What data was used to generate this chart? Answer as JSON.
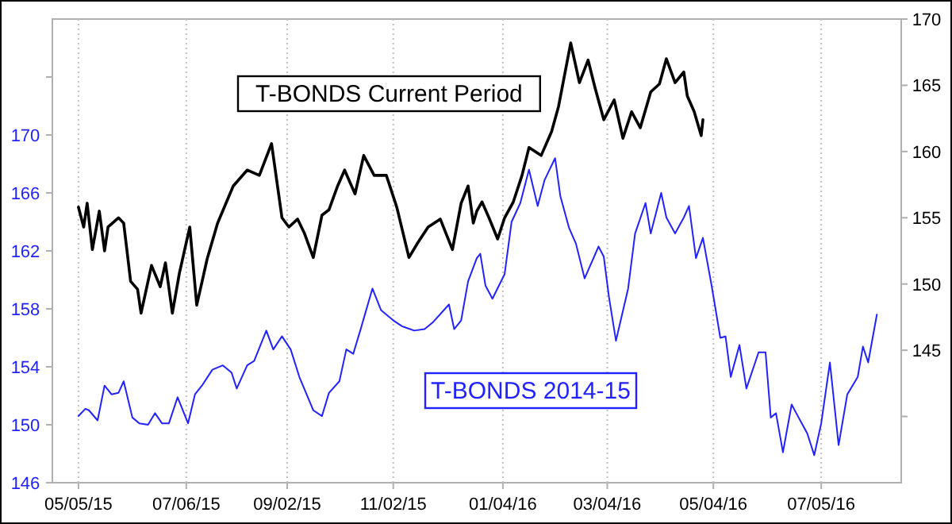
{
  "chart_data": {
    "type": "line",
    "xlim": [
      "2015-04-20",
      "2016-08-20"
    ],
    "xticks": [
      {
        "value": "2015-05-05",
        "label": "05/05/15"
      },
      {
        "value": "2015-07-06",
        "label": "07/06/15"
      },
      {
        "value": "2015-09-02",
        "label": "09/02/15"
      },
      {
        "value": "2015-11-02",
        "label": "11/02/15"
      },
      {
        "value": "2016-01-04",
        "label": "01/04/16"
      },
      {
        "value": "2016-03-04",
        "label": "03/04/16"
      },
      {
        "value": "2016-05-04",
        "label": "05/04/16"
      },
      {
        "value": "2016-07-05",
        "label": "07/05/16"
      }
    ],
    "ylim": [
      146,
      178
    ],
    "yticks": [
      146,
      150,
      154,
      158,
      162,
      166,
      170,
      {
        "value": 174,
        "label": null
      }
    ],
    "y2lim": [
      135,
      170
    ],
    "y2ticks": [
      {
        "value": 140,
        "label": null
      },
      145,
      150,
      155,
      160,
      165,
      170
    ],
    "grid": "x",
    "series": [
      {
        "name": "T-BONDS Current Period",
        "color": "#000000",
        "axis": "y2",
        "x": [
          "2015-05-05",
          "2015-05-08",
          "2015-05-10",
          "2015-05-13",
          "2015-05-17",
          "2015-05-20",
          "2015-05-22",
          "2015-05-28",
          "2015-05-31",
          "2015-06-04",
          "2015-06-08",
          "2015-06-10",
          "2015-06-16",
          "2015-06-21",
          "2015-06-24",
          "2015-06-28",
          "2015-07-02",
          "2015-07-08",
          "2015-07-12",
          "2015-07-18",
          "2015-07-24",
          "2015-08-02",
          "2015-08-10",
          "2015-08-17",
          "2015-08-24",
          "2015-08-30",
          "2015-09-03",
          "2015-09-08",
          "2015-09-12",
          "2015-09-17",
          "2015-09-22",
          "2015-09-26",
          "2015-10-01",
          "2015-10-05",
          "2015-10-11",
          "2015-10-16",
          "2015-10-22",
          "2015-10-29",
          "2015-11-04",
          "2015-11-11",
          "2015-11-16",
          "2015-11-22",
          "2015-11-29",
          "2015-12-06",
          "2015-12-11",
          "2015-12-15",
          "2015-12-18",
          "2015-12-20",
          "2015-12-23",
          "2015-12-27",
          "2016-01-01",
          "2016-01-05",
          "2016-01-10",
          "2016-01-15",
          "2016-01-19",
          "2016-01-26",
          "2016-02-01",
          "2016-02-05",
          "2016-02-12",
          "2016-02-17",
          "2016-02-22",
          "2016-02-26",
          "2016-03-02",
          "2016-03-08",
          "2016-03-13",
          "2016-03-18",
          "2016-03-23",
          "2016-03-29",
          "2016-04-03",
          "2016-04-07",
          "2016-04-12",
          "2016-04-17",
          "2016-04-19",
          "2016-04-23",
          "2016-04-27",
          "2016-04-28"
        ],
        "values": [
          155.8,
          154.3,
          156.1,
          152.6,
          155.5,
          152.5,
          154.3,
          155,
          154.6,
          150.2,
          149.6,
          147.8,
          151.4,
          149.8,
          151.6,
          147.8,
          150.8,
          154.3,
          148.4,
          151.9,
          154.6,
          157.4,
          158.6,
          158.2,
          160.6,
          155,
          154.3,
          154.9,
          153.8,
          152,
          155.2,
          155.6,
          157.4,
          158.6,
          156.8,
          159.7,
          158.2,
          158.2,
          155.8,
          152,
          153.1,
          154.3,
          154.9,
          152.6,
          156.1,
          157.4,
          154.6,
          155.5,
          156.2,
          155,
          153.4,
          155,
          156.2,
          158.2,
          160.3,
          159.7,
          161.5,
          163.4,
          168.2,
          165.2,
          166.9,
          164.8,
          162.4,
          163.9,
          161,
          163,
          161.8,
          164.5,
          165.1,
          167,
          165.2,
          166,
          164.2,
          163,
          161.2,
          162.4
        ]
      },
      {
        "name": "T-BONDS 2014-15",
        "color": "#2222ff",
        "x": [
          "2015-05-05",
          "2015-05-09",
          "2015-05-11",
          "2015-05-16",
          "2015-05-20",
          "2015-05-24",
          "2015-05-28",
          "2015-05-31",
          "2015-06-05",
          "2015-06-09",
          "2015-06-14",
          "2015-06-18",
          "2015-06-22",
          "2015-06-26",
          "2015-07-01",
          "2015-07-07",
          "2015-07-11",
          "2015-07-15",
          "2015-07-21",
          "2015-07-27",
          "2015-08-01",
          "2015-08-04",
          "2015-08-10",
          "2015-08-14",
          "2015-08-21",
          "2015-08-25",
          "2015-08-30",
          "2015-09-04",
          "2015-09-09",
          "2015-09-17",
          "2015-09-22",
          "2015-09-26",
          "2015-10-02",
          "2015-10-06",
          "2015-10-10",
          "2015-10-14",
          "2015-10-21",
          "2015-10-26",
          "2015-11-02",
          "2015-11-07",
          "2015-11-14",
          "2015-11-20",
          "2015-11-25",
          "2015-12-04",
          "2015-12-07",
          "2015-12-11",
          "2015-12-15",
          "2015-12-20",
          "2015-12-22",
          "2015-12-25",
          "2015-12-29",
          "2016-01-05",
          "2016-01-09",
          "2016-01-14",
          "2016-01-19",
          "2016-01-24",
          "2016-01-28",
          "2016-02-03",
          "2016-02-06",
          "2016-02-11",
          "2016-02-15",
          "2016-02-20",
          "2016-02-28",
          "2016-03-02",
          "2016-03-05",
          "2016-03-09",
          "2016-03-16",
          "2016-03-20",
          "2016-03-26",
          "2016-03-29",
          "2016-04-04",
          "2016-04-07",
          "2016-04-12",
          "2016-04-17",
          "2016-04-20",
          "2016-04-24",
          "2016-04-28",
          "2016-05-03",
          "2016-05-08",
          "2016-05-11",
          "2016-05-14",
          "2016-05-19",
          "2016-05-23",
          "2016-05-30",
          "2016-06-03",
          "2016-06-06",
          "2016-06-09",
          "2016-06-13",
          "2016-06-18",
          "2016-06-22",
          "2016-06-27",
          "2016-07-01",
          "2016-07-05",
          "2016-07-10",
          "2016-07-15",
          "2016-07-20",
          "2016-07-26",
          "2016-07-29",
          "2016-08-01",
          "2016-08-06"
        ],
        "values": [
          150.6,
          151.1,
          151,
          150.3,
          152.7,
          152.1,
          152.2,
          153,
          150.5,
          150.1,
          150,
          150.8,
          150.1,
          150.1,
          151.9,
          150.1,
          152.1,
          152.7,
          153.8,
          154.1,
          153.6,
          152.5,
          154.1,
          154.4,
          156.5,
          155.2,
          156.1,
          155.2,
          153.3,
          151,
          150.6,
          152.2,
          153,
          155.2,
          154.9,
          156.5,
          159.4,
          157.9,
          157.2,
          156.8,
          156.5,
          156.6,
          157.1,
          158.3,
          156.6,
          157.2,
          159.9,
          161.5,
          161.8,
          159.6,
          158.7,
          160.4,
          164,
          165.3,
          167.6,
          165.1,
          166.9,
          168.4,
          165.8,
          163.6,
          162.5,
          160.1,
          162.3,
          161.6,
          158.8,
          155.8,
          159.4,
          163.2,
          165.3,
          163.2,
          166,
          164.3,
          163.2,
          164.3,
          165.1,
          161.5,
          162.9,
          159.6,
          156,
          156.1,
          153.3,
          155.5,
          152.5,
          155,
          155,
          150.5,
          150.8,
          148.1,
          151.4,
          150.5,
          149.4,
          147.9,
          150.1,
          154.3,
          148.6,
          152.1,
          153.3,
          155.4,
          154.3,
          157.6
        ]
      }
    ]
  }
}
